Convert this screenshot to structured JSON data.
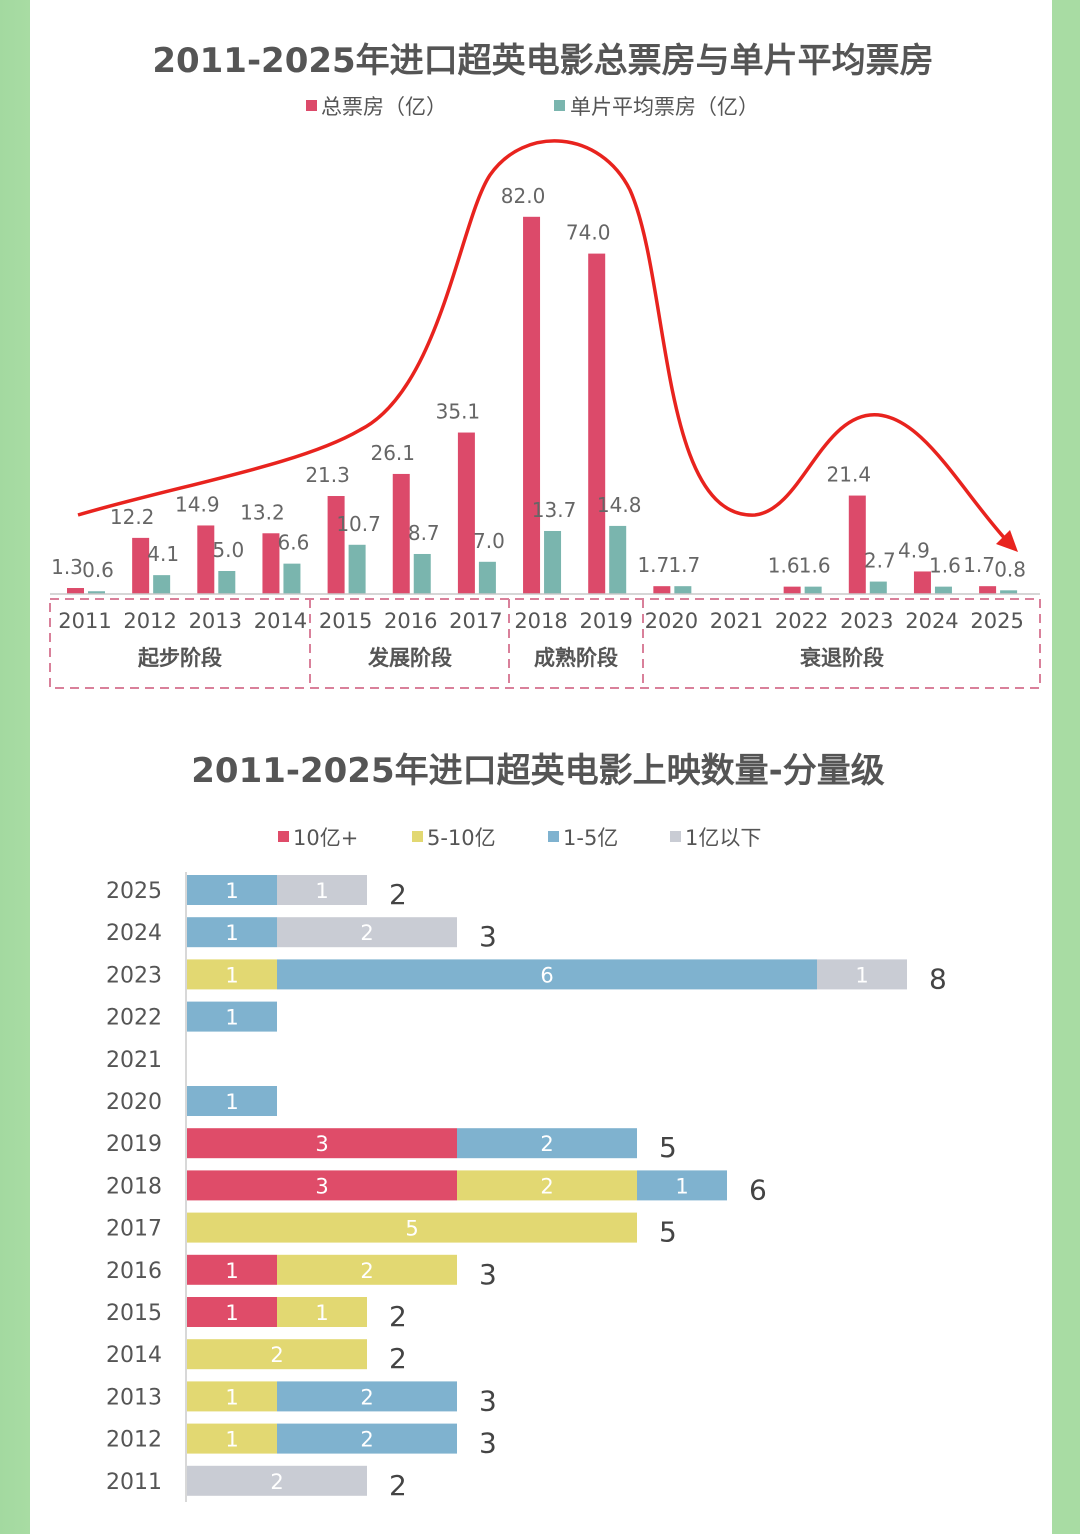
{
  "chart_data": [
    {
      "type": "bar",
      "title": "2011-2025年进口超英电影总票房与单片平均票房",
      "categories": [
        "2011",
        "2012",
        "2013",
        "2014",
        "2015",
        "2016",
        "2017",
        "2018",
        "2019",
        "2020",
        "2021",
        "2022",
        "2023",
        "2024",
        "2025"
      ],
      "series": [
        {
          "name": "总票房（亿）",
          "color": "#dc4a6a",
          "values": [
            1.3,
            12.2,
            14.9,
            13.2,
            21.3,
            26.1,
            35.1,
            82.0,
            74.0,
            1.7,
            null,
            1.6,
            21.4,
            4.9,
            1.7
          ]
        },
        {
          "name": "单片平均票房（亿）",
          "color": "#7ab5ae",
          "values": [
            0.6,
            4.1,
            5.0,
            6.6,
            10.7,
            8.7,
            7.0,
            13.7,
            14.8,
            1.7,
            null,
            1.6,
            2.7,
            1.6,
            0.8
          ]
        }
      ],
      "phases": [
        {
          "label": "起步阶段",
          "years": [
            "2011",
            "2014"
          ]
        },
        {
          "label": "发展阶段",
          "years": [
            "2015",
            "2017"
          ]
        },
        {
          "label": "成熟阶段",
          "years": [
            "2018",
            "2019"
          ]
        },
        {
          "label": "衰退阶段",
          "years": [
            "2020",
            "2025"
          ]
        }
      ],
      "legend": "top",
      "grid": false,
      "trend_color": "#e8231e"
    },
    {
      "type": "bar",
      "orientation": "horizontal-stacked",
      "title": "2011-2025年进口超英电影上映数量-分量级",
      "categories": [
        "2025",
        "2024",
        "2023",
        "2022",
        "2021",
        "2020",
        "2019",
        "2018",
        "2017",
        "2016",
        "2015",
        "2014",
        "2013",
        "2012",
        "2011"
      ],
      "series": [
        {
          "name": "10亿+",
          "color": "#df4c69",
          "values": [
            0,
            0,
            0,
            0,
            0,
            0,
            3,
            3,
            0,
            1,
            1,
            0,
            0,
            0,
            0
          ]
        },
        {
          "name": "5-10亿",
          "color": "#e2d872",
          "values": [
            0,
            0,
            1,
            0,
            0,
            0,
            0,
            2,
            5,
            2,
            1,
            2,
            1,
            1,
            0
          ]
        },
        {
          "name": "1-5亿",
          "color": "#7fb2cf",
          "values": [
            1,
            1,
            6,
            1,
            0,
            1,
            2,
            1,
            0,
            0,
            0,
            0,
            2,
            2,
            0
          ]
        },
        {
          "name": "1亿以下",
          "color": "#c9ccd4",
          "values": [
            1,
            2,
            1,
            0,
            0,
            0,
            0,
            0,
            0,
            0,
            0,
            0,
            0,
            0,
            2
          ]
        }
      ],
      "totals": [
        "2",
        "3",
        "8",
        "",
        "",
        "",
        "5",
        "6",
        "5",
        "3",
        "2",
        "2",
        "3",
        "3",
        "2"
      ],
      "legend": "top",
      "grid": false
    }
  ]
}
